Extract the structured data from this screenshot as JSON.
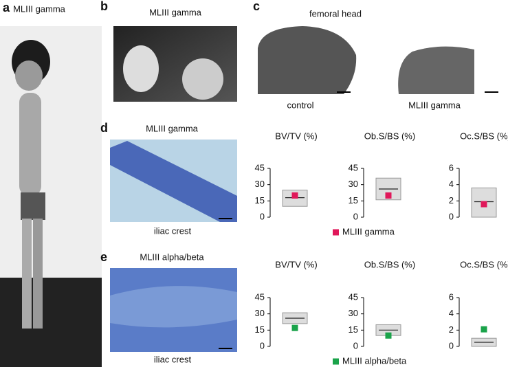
{
  "panels": {
    "a": {
      "label": "a",
      "title": "MLIII gamma"
    },
    "b": {
      "label": "b",
      "title": "MLIII gamma"
    },
    "c": {
      "label": "c",
      "title": "femoral head",
      "captions": [
        "control",
        "MLIII gamma"
      ]
    },
    "d": {
      "label": "d",
      "title": "MLIII gamma",
      "caption": "iliac crest"
    },
    "e": {
      "label": "e",
      "title": "MLIII alpha/beta",
      "caption": "iliac crest"
    }
  },
  "chart_data": [
    {
      "type": "range-plot",
      "title": "BV/TV (%)",
      "ylim": [
        0,
        45
      ],
      "yticks": [
        0,
        15,
        30,
        45
      ],
      "range": [
        10,
        25
      ],
      "mean": 18,
      "series": [
        {
          "color": "#e0185a",
          "values": [
            20
          ]
        }
      ]
    },
    {
      "type": "range-plot",
      "title": "Ob.S/BS (%)",
      "ylim": [
        0,
        45
      ],
      "yticks": [
        0,
        15,
        30,
        45
      ],
      "range": [
        16,
        36
      ],
      "mean": 26,
      "series": [
        {
          "name": "MLIII gamma",
          "color": "#e0185a",
          "values": [
            20
          ]
        }
      ]
    },
    {
      "type": "range-plot",
      "title": "Oc.S/BS (%)",
      "ylim": [
        0,
        6
      ],
      "yticks": [
        0,
        2,
        4,
        6
      ],
      "range": [
        0,
        3.6
      ],
      "mean": 1.9,
      "series": [
        {
          "color": "#e0185a",
          "values": [
            1.6
          ]
        }
      ]
    },
    {
      "type": "range-plot",
      "title": "BV/TV (%)",
      "ylim": [
        0,
        45
      ],
      "yticks": [
        0,
        15,
        30,
        45
      ],
      "range": [
        21,
        31
      ],
      "mean": 26,
      "series": [
        {
          "color": "#1aa34a",
          "values": [
            17
          ]
        }
      ]
    },
    {
      "type": "range-plot",
      "title": "Ob.S/BS (%)",
      "ylim": [
        0,
        45
      ],
      "yticks": [
        0,
        15,
        30,
        45
      ],
      "range": [
        10,
        20
      ],
      "mean": 15,
      "series": [
        {
          "name": "MLIII alpha/beta",
          "color": "#1aa34a",
          "values": [
            10
          ]
        }
      ]
    },
    {
      "type": "range-plot",
      "title": "Oc.S/BS (%)",
      "ylim": [
        0,
        6
      ],
      "yticks": [
        0,
        2,
        4,
        6
      ],
      "range": [
        0,
        1
      ],
      "mean": 0.5,
      "series": [
        {
          "color": "#1aa34a",
          "values": [
            2.1
          ]
        }
      ]
    }
  ]
}
